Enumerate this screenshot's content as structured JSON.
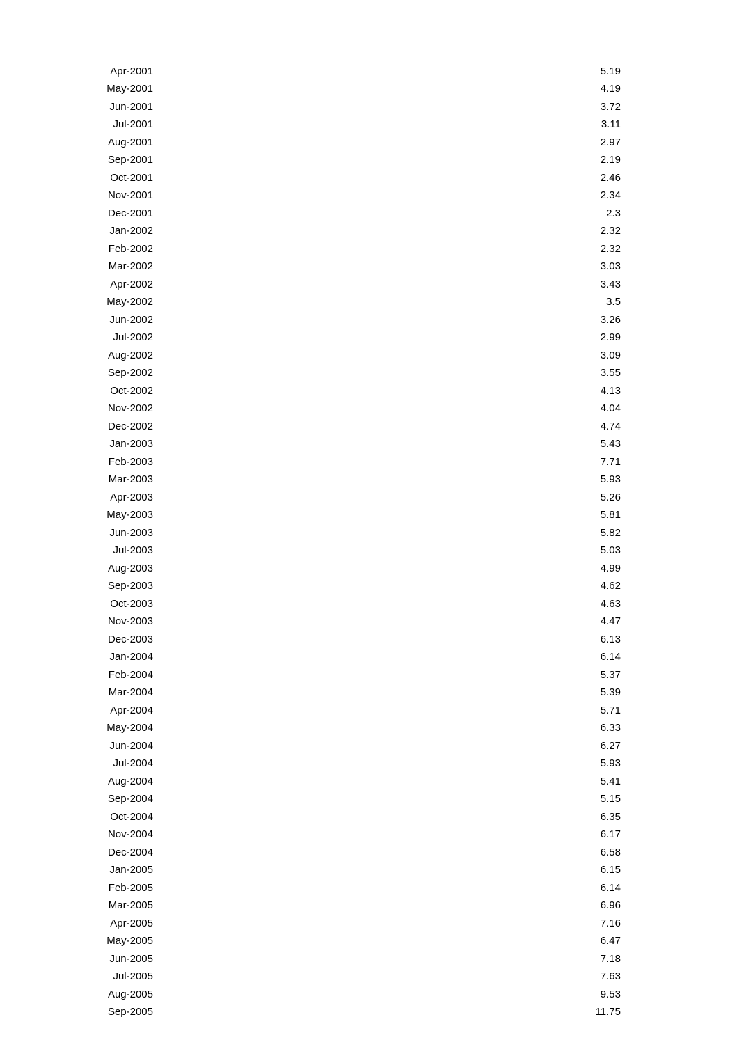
{
  "table": {
    "type": "table",
    "columns": [
      {
        "key": "date",
        "align": "right",
        "width_pct": 15
      },
      {
        "key": "value",
        "align": "right",
        "width_pct": 85
      }
    ],
    "rows": [
      {
        "date": "Apr-2001",
        "value": "5.19"
      },
      {
        "date": "May-2001",
        "value": "4.19"
      },
      {
        "date": "Jun-2001",
        "value": "3.72"
      },
      {
        "date": "Jul-2001",
        "value": "3.11"
      },
      {
        "date": "Aug-2001",
        "value": "2.97"
      },
      {
        "date": "Sep-2001",
        "value": "2.19"
      },
      {
        "date": "Oct-2001",
        "value": "2.46"
      },
      {
        "date": "Nov-2001",
        "value": "2.34"
      },
      {
        "date": "Dec-2001",
        "value": "2.3"
      },
      {
        "date": "Jan-2002",
        "value": "2.32"
      },
      {
        "date": "Feb-2002",
        "value": "2.32"
      },
      {
        "date": "Mar-2002",
        "value": "3.03"
      },
      {
        "date": "Apr-2002",
        "value": "3.43"
      },
      {
        "date": "May-2002",
        "value": "3.5"
      },
      {
        "date": "Jun-2002",
        "value": "3.26"
      },
      {
        "date": "Jul-2002",
        "value": "2.99"
      },
      {
        "date": "Aug-2002",
        "value": "3.09"
      },
      {
        "date": "Sep-2002",
        "value": "3.55"
      },
      {
        "date": "Oct-2002",
        "value": "4.13"
      },
      {
        "date": "Nov-2002",
        "value": "4.04"
      },
      {
        "date": "Dec-2002",
        "value": "4.74"
      },
      {
        "date": "Jan-2003",
        "value": "5.43"
      },
      {
        "date": "Feb-2003",
        "value": "7.71"
      },
      {
        "date": "Mar-2003",
        "value": "5.93"
      },
      {
        "date": "Apr-2003",
        "value": "5.26"
      },
      {
        "date": "May-2003",
        "value": "5.81"
      },
      {
        "date": "Jun-2003",
        "value": "5.82"
      },
      {
        "date": "Jul-2003",
        "value": "5.03"
      },
      {
        "date": "Aug-2003",
        "value": "4.99"
      },
      {
        "date": "Sep-2003",
        "value": "4.62"
      },
      {
        "date": "Oct-2003",
        "value": "4.63"
      },
      {
        "date": "Nov-2003",
        "value": "4.47"
      },
      {
        "date": "Dec-2003",
        "value": "6.13"
      },
      {
        "date": "Jan-2004",
        "value": "6.14"
      },
      {
        "date": "Feb-2004",
        "value": "5.37"
      },
      {
        "date": "Mar-2004",
        "value": "5.39"
      },
      {
        "date": "Apr-2004",
        "value": "5.71"
      },
      {
        "date": "May-2004",
        "value": "6.33"
      },
      {
        "date": "Jun-2004",
        "value": "6.27"
      },
      {
        "date": "Jul-2004",
        "value": "5.93"
      },
      {
        "date": "Aug-2004",
        "value": "5.41"
      },
      {
        "date": "Sep-2004",
        "value": "5.15"
      },
      {
        "date": "Oct-2004",
        "value": "6.35"
      },
      {
        "date": "Nov-2004",
        "value": "6.17"
      },
      {
        "date": "Dec-2004",
        "value": "6.58"
      },
      {
        "date": "Jan-2005",
        "value": "6.15"
      },
      {
        "date": "Feb-2005",
        "value": "6.14"
      },
      {
        "date": "Mar-2005",
        "value": "6.96"
      },
      {
        "date": "Apr-2005",
        "value": "7.16"
      },
      {
        "date": "May-2005",
        "value": "6.47"
      },
      {
        "date": "Jun-2005",
        "value": "7.18"
      },
      {
        "date": "Jul-2005",
        "value": "7.63"
      },
      {
        "date": "Aug-2005",
        "value": "9.53"
      },
      {
        "date": "Sep-2005",
        "value": "11.75"
      }
    ],
    "font_family": "Arial, Helvetica, sans-serif",
    "font_size_pt": 11,
    "text_color": "#000000",
    "background_color": "#ffffff"
  }
}
